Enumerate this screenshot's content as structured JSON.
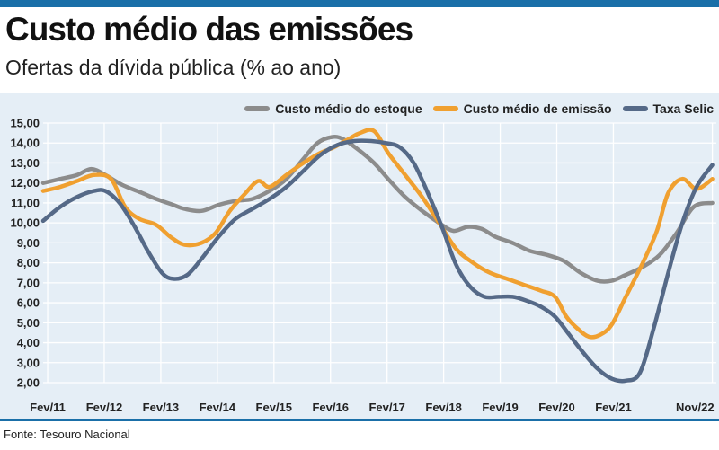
{
  "colors": {
    "accent": "#1a6fa8",
    "panel_bg": "#e5eef6",
    "grid": "#ffffff",
    "series": [
      "#8c8c8c",
      "#f0a030",
      "#556987"
    ]
  },
  "chart_data": {
    "type": "line",
    "title": "Custo médio das emissões",
    "subtitle": "Ofertas da dívida pública (% ao ano)",
    "source": "Fonte: Tesouro Nacional",
    "xlabel": "",
    "ylabel": "",
    "ylim": [
      2.0,
      15.0
    ],
    "y_ticks": [
      "15,00",
      "14,00",
      "13,00",
      "12,00",
      "11,00",
      "10,00",
      "9,00",
      "8,00",
      "7,00",
      "6,00",
      "5,00",
      "4,00",
      "3,00",
      "2,00"
    ],
    "y_tick_values": [
      15,
      14,
      13,
      12,
      11,
      10,
      9,
      8,
      7,
      6,
      5,
      4,
      3,
      2
    ],
    "x_tick_labels": [
      "Fev/11",
      "Fev/12",
      "Fev/13",
      "Fev/14",
      "Fev/15",
      "Fev/16",
      "Fev/17",
      "Fev/18",
      "Fev/19",
      "Fev/20",
      "Fev/21",
      "Nov/22"
    ],
    "x_tick_values": [
      2011.08,
      2012.08,
      2013.08,
      2014.08,
      2015.08,
      2016.08,
      2017.08,
      2018.08,
      2019.08,
      2020.08,
      2021.08,
      2022.83
    ],
    "xlim": [
      2011.0,
      2022.9
    ],
    "grid": true,
    "legend_position": "top-right",
    "series": [
      {
        "name": "Custo médio do estoque",
        "x": [
          2011.0,
          2011.3,
          2011.6,
          2011.85,
          2012.1,
          2012.4,
          2012.75,
          2013.0,
          2013.3,
          2013.5,
          2013.8,
          2014.1,
          2014.4,
          2014.7,
          2015.0,
          2015.3,
          2015.6,
          2015.85,
          2016.1,
          2016.3,
          2016.6,
          2016.85,
          2017.1,
          2017.4,
          2017.7,
          2018.0,
          2018.25,
          2018.5,
          2018.75,
          2019.0,
          2019.3,
          2019.6,
          2019.9,
          2020.2,
          2020.5,
          2020.8,
          2021.05,
          2021.3,
          2021.6,
          2021.9,
          2022.2,
          2022.5,
          2022.83
        ],
        "values": [
          12.0,
          12.2,
          12.4,
          12.7,
          12.4,
          11.9,
          11.5,
          11.2,
          10.9,
          10.7,
          10.6,
          10.9,
          11.1,
          11.2,
          11.6,
          12.2,
          13.2,
          14.0,
          14.3,
          14.2,
          13.6,
          13.0,
          12.2,
          11.3,
          10.6,
          10.0,
          9.6,
          9.8,
          9.7,
          9.3,
          9.0,
          8.6,
          8.4,
          8.1,
          7.5,
          7.1,
          7.1,
          7.4,
          7.8,
          8.4,
          9.5,
          10.8,
          11.0
        ]
      },
      {
        "name": "Custo médio de emissão",
        "x": [
          2011.0,
          2011.3,
          2011.6,
          2011.9,
          2012.2,
          2012.45,
          2012.7,
          2013.0,
          2013.25,
          2013.5,
          2013.8,
          2014.05,
          2014.3,
          2014.55,
          2014.8,
          2015.0,
          2015.3,
          2015.6,
          2015.9,
          2016.15,
          2016.4,
          2016.6,
          2016.85,
          2017.1,
          2017.4,
          2017.7,
          2018.0,
          2018.3,
          2018.6,
          2018.9,
          2019.2,
          2019.5,
          2019.8,
          2020.05,
          2020.25,
          2020.45,
          2020.65,
          2020.85,
          2021.05,
          2021.3,
          2021.6,
          2021.85,
          2022.05,
          2022.3,
          2022.55,
          2022.83
        ],
        "values": [
          11.6,
          11.8,
          12.1,
          12.4,
          12.2,
          10.8,
          10.2,
          9.9,
          9.3,
          8.9,
          9.0,
          9.5,
          10.6,
          11.4,
          12.1,
          11.8,
          12.4,
          13.0,
          13.5,
          13.8,
          14.2,
          14.5,
          14.6,
          13.5,
          12.4,
          11.3,
          10.0,
          8.7,
          8.0,
          7.5,
          7.2,
          6.9,
          6.6,
          6.3,
          5.3,
          4.7,
          4.3,
          4.4,
          4.9,
          6.3,
          8.0,
          9.6,
          11.5,
          12.2,
          11.7,
          12.2
        ]
      },
      {
        "name": "Taxa Selic",
        "x": [
          2011.0,
          2011.3,
          2011.6,
          2011.9,
          2012.1,
          2012.35,
          2012.6,
          2012.85,
          2013.1,
          2013.3,
          2013.55,
          2013.8,
          2014.1,
          2014.4,
          2014.7,
          2015.0,
          2015.3,
          2015.6,
          2015.9,
          2016.2,
          2016.5,
          2016.8,
          2017.05,
          2017.3,
          2017.55,
          2017.8,
          2018.05,
          2018.3,
          2018.55,
          2018.8,
          2019.05,
          2019.3,
          2019.55,
          2019.8,
          2020.05,
          2020.3,
          2020.55,
          2020.8,
          2021.05,
          2021.3,
          2021.55,
          2021.8,
          2022.05,
          2022.3,
          2022.55,
          2022.83
        ],
        "values": [
          10.1,
          10.8,
          11.3,
          11.6,
          11.6,
          11.0,
          9.9,
          8.6,
          7.5,
          7.2,
          7.4,
          8.2,
          9.3,
          10.2,
          10.7,
          11.2,
          11.8,
          12.6,
          13.4,
          13.9,
          14.1,
          14.1,
          14.0,
          13.8,
          13.0,
          11.5,
          9.8,
          7.9,
          6.8,
          6.3,
          6.3,
          6.3,
          6.1,
          5.8,
          5.3,
          4.4,
          3.5,
          2.7,
          2.2,
          2.1,
          2.5,
          4.8,
          7.5,
          10.0,
          11.8,
          12.9
        ]
      }
    ]
  }
}
